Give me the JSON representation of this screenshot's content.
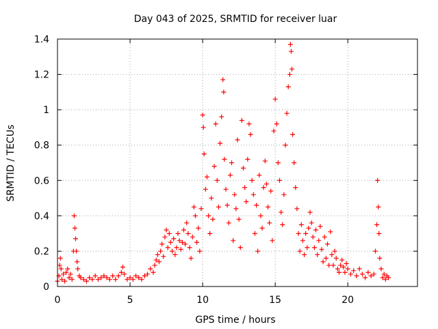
{
  "chart_data": {
    "type": "scatter",
    "title": "Day 043 of 2025, SRMTID for receiver luar",
    "xlabel": "GPS time / hours",
    "ylabel": "SRMTID / TECUs",
    "xlim": [
      0,
      24.8
    ],
    "ylim": [
      0,
      1.4
    ],
    "x_ticks": [
      0,
      5,
      10,
      15,
      20
    ],
    "y_ticks": [
      0,
      0.2,
      0.4,
      0.6,
      0.8,
      1,
      1.2,
      1.4
    ],
    "x_tick_labels": [
      "0",
      "5",
      "10",
      "15",
      "20"
    ],
    "y_tick_labels": [
      "0",
      "0.2",
      "0.4",
      "0.6",
      "0.8",
      "1",
      "1.2",
      "1.4"
    ],
    "grid": true,
    "marker": "+",
    "color": "#ff0000",
    "series": [
      {
        "name": "SRMTID",
        "points": [
          [
            0.0,
            0.03
          ],
          [
            0.1,
            0.06
          ],
          [
            0.15,
            0.12
          ],
          [
            0.2,
            0.16
          ],
          [
            0.25,
            0.1
          ],
          [
            0.3,
            0.04
          ],
          [
            0.4,
            0.07
          ],
          [
            0.5,
            0.03
          ],
          [
            0.6,
            0.08
          ],
          [
            0.7,
            0.1
          ],
          [
            0.8,
            0.05
          ],
          [
            0.9,
            0.07
          ],
          [
            1.0,
            0.04
          ],
          [
            1.1,
            0.2
          ],
          [
            1.15,
            0.4
          ],
          [
            1.2,
            0.33
          ],
          [
            1.25,
            0.27
          ],
          [
            1.3,
            0.2
          ],
          [
            1.35,
            0.14
          ],
          [
            1.4,
            0.1
          ],
          [
            1.5,
            0.06
          ],
          [
            1.6,
            0.05
          ],
          [
            1.8,
            0.04
          ],
          [
            2.0,
            0.03
          ],
          [
            2.2,
            0.05
          ],
          [
            2.4,
            0.04
          ],
          [
            2.6,
            0.06
          ],
          [
            2.8,
            0.04
          ],
          [
            3.0,
            0.05
          ],
          [
            3.2,
            0.06
          ],
          [
            3.4,
            0.05
          ],
          [
            3.6,
            0.04
          ],
          [
            3.8,
            0.06
          ],
          [
            4.0,
            0.04
          ],
          [
            4.2,
            0.06
          ],
          [
            4.4,
            0.08
          ],
          [
            4.5,
            0.11
          ],
          [
            4.6,
            0.07
          ],
          [
            4.8,
            0.04
          ],
          [
            5.0,
            0.05
          ],
          [
            5.2,
            0.04
          ],
          [
            5.4,
            0.06
          ],
          [
            5.6,
            0.05
          ],
          [
            5.8,
            0.04
          ],
          [
            6.0,
            0.06
          ],
          [
            6.2,
            0.07
          ],
          [
            6.4,
            0.1
          ],
          [
            6.6,
            0.08
          ],
          [
            6.7,
            0.12
          ],
          [
            6.8,
            0.15
          ],
          [
            6.9,
            0.18
          ],
          [
            7.0,
            0.14
          ],
          [
            7.1,
            0.2
          ],
          [
            7.2,
            0.24
          ],
          [
            7.3,
            0.17
          ],
          [
            7.4,
            0.28
          ],
          [
            7.5,
            0.32
          ],
          [
            7.6,
            0.22
          ],
          [
            7.7,
            0.3
          ],
          [
            7.8,
            0.25
          ],
          [
            7.9,
            0.2
          ],
          [
            8.0,
            0.27
          ],
          [
            8.1,
            0.18
          ],
          [
            8.2,
            0.22
          ],
          [
            8.3,
            0.3
          ],
          [
            8.4,
            0.26
          ],
          [
            8.5,
            0.21
          ],
          [
            8.6,
            0.25
          ],
          [
            8.7,
            0.32
          ],
          [
            8.8,
            0.24
          ],
          [
            8.9,
            0.36
          ],
          [
            9.0,
            0.3
          ],
          [
            9.1,
            0.22
          ],
          [
            9.2,
            0.16
          ],
          [
            9.3,
            0.28
          ],
          [
            9.4,
            0.45
          ],
          [
            9.5,
            0.4
          ],
          [
            9.6,
            0.25
          ],
          [
            9.7,
            0.33
          ],
          [
            9.8,
            0.2
          ],
          [
            9.9,
            0.44
          ],
          [
            10.0,
            0.97
          ],
          [
            10.05,
            0.9
          ],
          [
            10.1,
            0.75
          ],
          [
            10.2,
            0.55
          ],
          [
            10.3,
            0.62
          ],
          [
            10.4,
            0.4
          ],
          [
            10.5,
            0.3
          ],
          [
            10.6,
            0.5
          ],
          [
            10.7,
            0.38
          ],
          [
            10.8,
            0.68
          ],
          [
            10.9,
            0.92
          ],
          [
            11.0,
            0.6
          ],
          [
            11.1,
            0.45
          ],
          [
            11.2,
            0.81
          ],
          [
            11.3,
            0.96
          ],
          [
            11.4,
            1.17
          ],
          [
            11.45,
            1.1
          ],
          [
            11.5,
            0.72
          ],
          [
            11.6,
            0.55
          ],
          [
            11.7,
            0.46
          ],
          [
            11.8,
            0.36
          ],
          [
            11.9,
            0.63
          ],
          [
            12.0,
            0.7
          ],
          [
            12.1,
            0.26
          ],
          [
            12.2,
            0.52
          ],
          [
            12.3,
            0.44
          ],
          [
            12.4,
            0.83
          ],
          [
            12.5,
            0.38
          ],
          [
            12.6,
            0.22
          ],
          [
            12.7,
            0.94
          ],
          [
            12.8,
            0.67
          ],
          [
            12.9,
            0.56
          ],
          [
            13.0,
            0.48
          ],
          [
            13.1,
            0.72
          ],
          [
            13.2,
            0.92
          ],
          [
            13.3,
            0.86
          ],
          [
            13.4,
            0.6
          ],
          [
            13.5,
            0.52
          ],
          [
            13.6,
            0.3
          ],
          [
            13.7,
            0.46
          ],
          [
            13.8,
            0.2
          ],
          [
            13.9,
            0.63
          ],
          [
            14.0,
            0.4
          ],
          [
            14.1,
            0.33
          ],
          [
            14.2,
            0.56
          ],
          [
            14.3,
            0.71
          ],
          [
            14.4,
            0.58
          ],
          [
            14.5,
            0.45
          ],
          [
            14.6,
            0.36
          ],
          [
            14.7,
            0.54
          ],
          [
            14.8,
            0.26
          ],
          [
            14.9,
            0.88
          ],
          [
            15.0,
            1.06
          ],
          [
            15.1,
            0.92
          ],
          [
            15.2,
            0.7
          ],
          [
            15.3,
            0.6
          ],
          [
            15.4,
            0.42
          ],
          [
            15.5,
            0.35
          ],
          [
            15.6,
            0.52
          ],
          [
            15.7,
            0.8
          ],
          [
            15.8,
            0.98
          ],
          [
            15.9,
            1.13
          ],
          [
            16.0,
            1.2
          ],
          [
            16.05,
            1.37
          ],
          [
            16.1,
            1.33
          ],
          [
            16.15,
            1.23
          ],
          [
            16.2,
            0.86
          ],
          [
            16.3,
            0.7
          ],
          [
            16.4,
            0.56
          ],
          [
            16.5,
            0.44
          ],
          [
            16.6,
            0.3
          ],
          [
            16.7,
            0.2
          ],
          [
            16.8,
            0.35
          ],
          [
            16.9,
            0.26
          ],
          [
            17.0,
            0.18
          ],
          [
            17.1,
            0.3
          ],
          [
            17.2,
            0.22
          ],
          [
            17.3,
            0.33
          ],
          [
            17.4,
            0.42
          ],
          [
            17.5,
            0.36
          ],
          [
            17.6,
            0.28
          ],
          [
            17.7,
            0.22
          ],
          [
            17.8,
            0.32
          ],
          [
            17.9,
            0.18
          ],
          [
            18.0,
            0.26
          ],
          [
            18.1,
            0.34
          ],
          [
            18.2,
            0.21
          ],
          [
            18.3,
            0.14
          ],
          [
            18.4,
            0.28
          ],
          [
            18.5,
            0.16
          ],
          [
            18.6,
            0.24
          ],
          [
            18.7,
            0.12
          ],
          [
            18.8,
            0.31
          ],
          [
            18.9,
            0.18
          ],
          [
            19.0,
            0.12
          ],
          [
            19.1,
            0.2
          ],
          [
            19.2,
            0.16
          ],
          [
            19.3,
            0.1
          ],
          [
            19.4,
            0.08
          ],
          [
            19.5,
            0.12
          ],
          [
            19.6,
            0.15
          ],
          [
            19.7,
            0.11
          ],
          [
            19.8,
            0.08
          ],
          [
            19.9,
            0.13
          ],
          [
            20.0,
            0.1
          ],
          [
            20.2,
            0.07
          ],
          [
            20.4,
            0.09
          ],
          [
            20.6,
            0.06
          ],
          [
            20.8,
            0.1
          ],
          [
            21.0,
            0.07
          ],
          [
            21.2,
            0.05
          ],
          [
            21.4,
            0.08
          ],
          [
            21.6,
            0.06
          ],
          [
            21.8,
            0.07
          ],
          [
            21.9,
            0.2
          ],
          [
            22.0,
            0.35
          ],
          [
            22.05,
            0.6
          ],
          [
            22.1,
            0.45
          ],
          [
            22.15,
            0.3
          ],
          [
            22.2,
            0.16
          ],
          [
            22.3,
            0.1
          ],
          [
            22.4,
            0.05
          ],
          [
            22.5,
            0.07
          ],
          [
            22.6,
            0.04
          ],
          [
            22.7,
            0.06
          ],
          [
            22.8,
            0.05
          ]
        ]
      }
    ]
  }
}
